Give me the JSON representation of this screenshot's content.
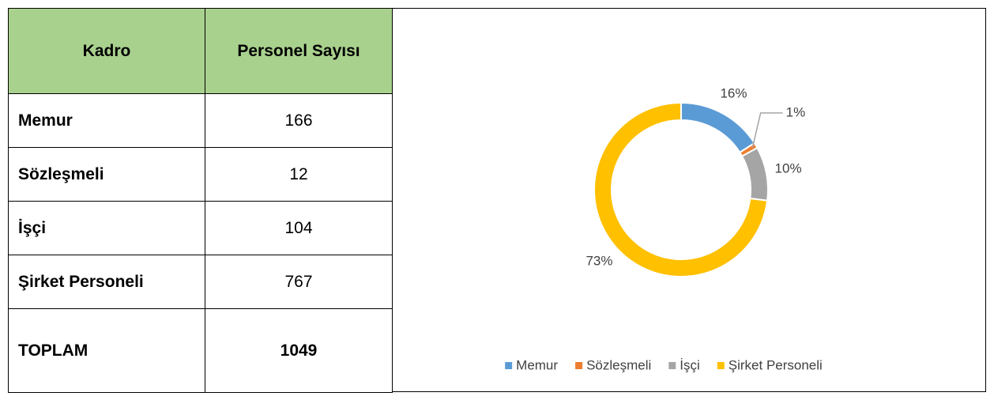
{
  "table": {
    "header": [
      "Kadro",
      "Personel Sayısı"
    ],
    "rows": [
      [
        "Memur",
        166
      ],
      [
        "Sözleşmeli",
        12
      ],
      [
        "İşçi",
        104
      ],
      [
        "Şirket Personeli",
        767
      ],
      [
        "TOPLAM",
        1049
      ]
    ]
  },
  "chart_data": {
    "type": "pie",
    "donut": true,
    "categories": [
      "Memur",
      "Sözleşmeli",
      "İşçi",
      "Şirket Personeli"
    ],
    "values": [
      16,
      1,
      10,
      73
    ],
    "value_labels": [
      "16%",
      "1%",
      "10%",
      "73%"
    ],
    "colors": [
      "#5b9bd5",
      "#ed7d31",
      "#a5a5a5",
      "#ffc000"
    ],
    "legend": "bottom"
  }
}
